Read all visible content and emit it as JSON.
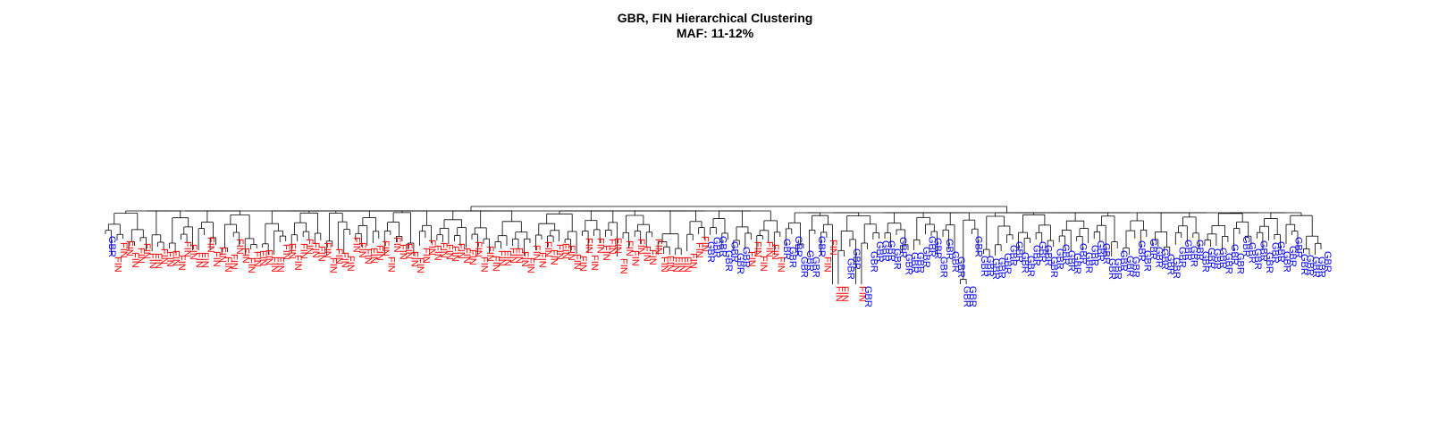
{
  "chart_data": {
    "type": "dendrogram",
    "title": "GBR, FIN Hierarchical Clustering",
    "subtitle": "MAF: 11-12%",
    "xlabel": "",
    "ylabel": "",
    "grid": false,
    "legend": "none",
    "label_colors": {
      "FIN": "#ff0000",
      "GBR": "#0000ff"
    },
    "leaf_groups": [
      {
        "label": "GBR",
        "count": 1
      },
      {
        "label": "FIN",
        "count": 102
      },
      {
        "label": "GBR",
        "count": 7
      },
      {
        "label": "FIN",
        "count": 6
      },
      {
        "label": "GBR",
        "count": 7
      },
      {
        "label": "FIN",
        "count": 4
      },
      {
        "label": "GBR",
        "count": 2
      },
      {
        "label": "FIN",
        "count": 1
      },
      {
        "label": "GBR",
        "count": 80
      }
    ],
    "outlier_leaves": [
      125,
      126,
      129,
      130,
      147,
      148
    ]
  }
}
